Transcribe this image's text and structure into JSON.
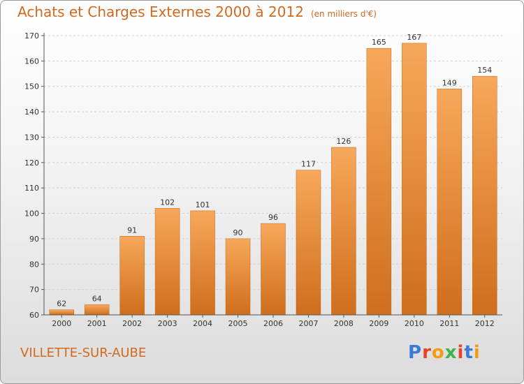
{
  "header": {
    "title": "Achats et Charges Externes 2000 à 2012",
    "unit": "(en milliers d'€)"
  },
  "footer": {
    "commune": "VILLETTE-SUR-AUBE",
    "logo_text": "Proxiti",
    "logo_colors": [
      "#3a7bd5",
      "#e8412c",
      "#f39c12",
      "#3cb44b",
      "#e8412c",
      "#3a7bd5",
      "#f39c12"
    ]
  },
  "colors": {
    "bar_light": "#f7a85a",
    "bar_dark": "#cf6e1c",
    "text_accent": "#d2691e",
    "grid": "#d0d0d0",
    "axis": "#555555"
  },
  "chart_data": {
    "type": "bar",
    "categories": [
      "2000",
      "2001",
      "2002",
      "2003",
      "2004",
      "2005",
      "2006",
      "2007",
      "2008",
      "2009",
      "2010",
      "2011",
      "2012"
    ],
    "values": [
      62,
      64,
      91,
      102,
      101,
      90,
      96,
      117,
      126,
      165,
      167,
      149,
      154
    ],
    "ylim": [
      60,
      170
    ],
    "yticks": [
      60,
      70,
      80,
      90,
      100,
      110,
      120,
      130,
      140,
      150,
      160,
      170
    ],
    "grid": true,
    "data_labels": true
  }
}
